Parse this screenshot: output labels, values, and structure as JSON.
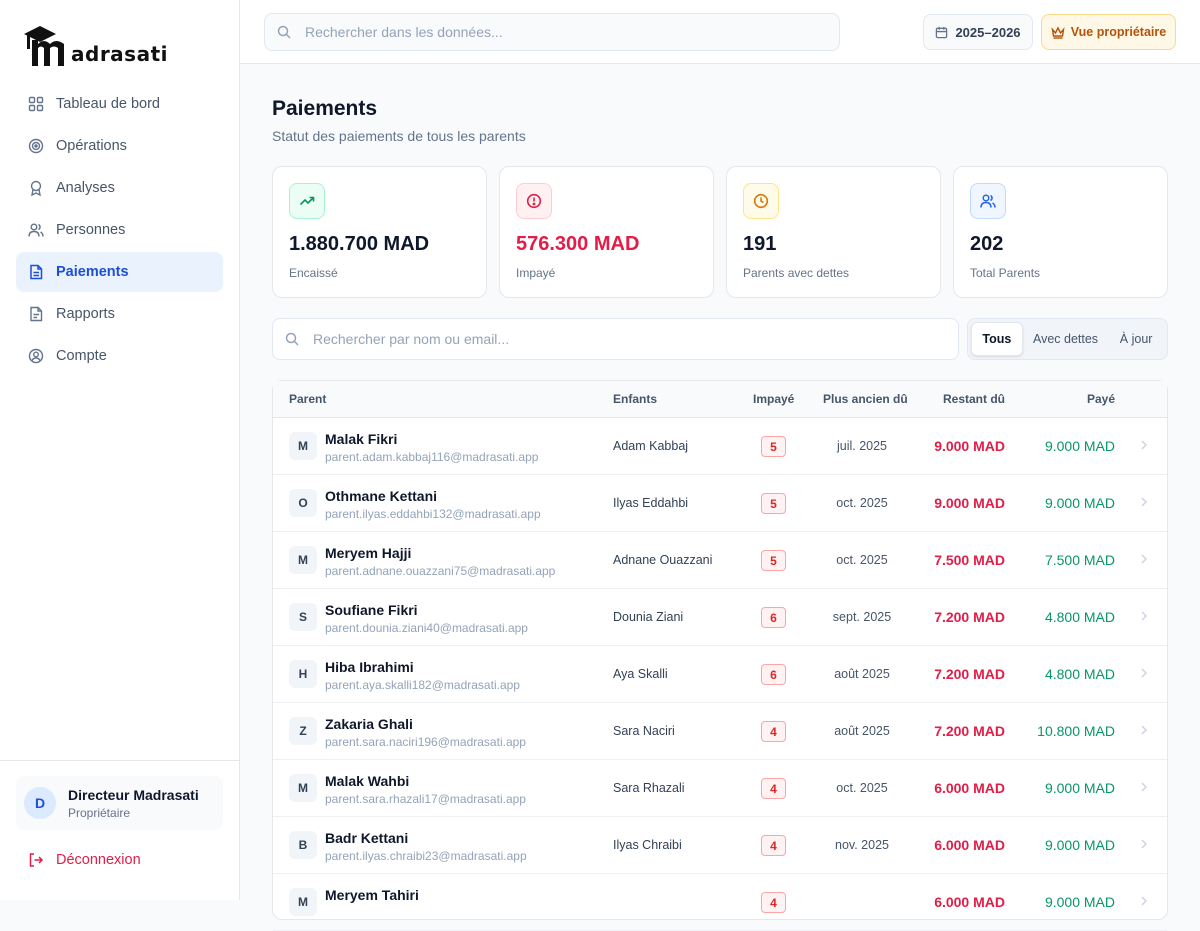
{
  "app": {
    "logo_text": "adrasati"
  },
  "sidebar": {
    "items": [
      {
        "label": "Tableau de bord",
        "icon": "dashboard-icon"
      },
      {
        "label": "Opérations",
        "icon": "target-icon"
      },
      {
        "label": "Analyses",
        "icon": "award-icon"
      },
      {
        "label": "Personnes",
        "icon": "users-icon"
      },
      {
        "label": "Paiements",
        "icon": "document-icon",
        "active": true
      },
      {
        "label": "Rapports",
        "icon": "report-icon"
      },
      {
        "label": "Compte",
        "icon": "user-circle-icon"
      }
    ],
    "user": {
      "initial": "D",
      "name": "Directeur Madrasati",
      "role": "Propriétaire"
    },
    "logout_label": "Déconnexion"
  },
  "topbar": {
    "search_placeholder": "Rechercher dans les données...",
    "year": "2025–2026",
    "owner_view": "Vue propriétaire"
  },
  "page": {
    "title": "Paiements",
    "subtitle": "Statut des paiements de tous les parents"
  },
  "stats": [
    {
      "value": "1.880.700 MAD",
      "label": "Encaissé",
      "icon": "trending-up-icon",
      "accent": "#059669",
      "bg": "#ecfdf5",
      "border": "#a7f3d0",
      "value_color": "#0f172a"
    },
    {
      "value": "576.300 MAD",
      "label": "Impayé",
      "icon": "alert-circle-icon",
      "accent": "#e11d48",
      "bg": "#fff1f2",
      "border": "#fecdd3",
      "value_color": "#e11d48"
    },
    {
      "value": "191",
      "label": "Parents avec dettes",
      "icon": "clock-icon",
      "accent": "#d97706",
      "bg": "#fffbeb",
      "border": "#fde68a",
      "value_color": "#0f172a"
    },
    {
      "value": "202",
      "label": "Total Parents",
      "icon": "users-icon",
      "accent": "#2563eb",
      "bg": "#eff6ff",
      "border": "#bfdbfe",
      "value_color": "#0f172a"
    }
  ],
  "filters": {
    "search_placeholder": "Rechercher par nom ou email...",
    "tabs": [
      {
        "label": "Tous",
        "active": true
      },
      {
        "label": "Avec dettes"
      },
      {
        "label": "À jour"
      }
    ]
  },
  "table": {
    "headers": {
      "parent": "Parent",
      "enfants": "Enfants",
      "impaye": "Impayé",
      "ancien": "Plus ancien dû",
      "restant": "Restant dû",
      "paye": "Payé"
    },
    "rows": [
      {
        "initial": "M",
        "name": "Malak Fikri",
        "email": "parent.adam.kabbaj116@madrasati.app",
        "child": "Adam Kabbaj",
        "unpaid": "5",
        "oldest": "juil. 2025",
        "remaining": "9.000 MAD",
        "paid": "9.000 MAD"
      },
      {
        "initial": "O",
        "name": "Othmane Kettani",
        "email": "parent.ilyas.eddahbi132@madrasati.app",
        "child": "Ilyas Eddahbi",
        "unpaid": "5",
        "oldest": "oct. 2025",
        "remaining": "9.000 MAD",
        "paid": "9.000 MAD"
      },
      {
        "initial": "M",
        "name": "Meryem Hajji",
        "email": "parent.adnane.ouazzani75@madrasati.app",
        "child": "Adnane Ouazzani",
        "unpaid": "5",
        "oldest": "oct. 2025",
        "remaining": "7.500 MAD",
        "paid": "7.500 MAD"
      },
      {
        "initial": "S",
        "name": "Soufiane Fikri",
        "email": "parent.dounia.ziani40@madrasati.app",
        "child": "Dounia Ziani",
        "unpaid": "6",
        "oldest": "sept. 2025",
        "remaining": "7.200 MAD",
        "paid": "4.800 MAD"
      },
      {
        "initial": "H",
        "name": "Hiba Ibrahimi",
        "email": "parent.aya.skalli182@madrasati.app",
        "child": "Aya Skalli",
        "unpaid": "6",
        "oldest": "août 2025",
        "remaining": "7.200 MAD",
        "paid": "4.800 MAD"
      },
      {
        "initial": "Z",
        "name": "Zakaria Ghali",
        "email": "parent.sara.naciri196@madrasati.app",
        "child": "Sara Naciri",
        "unpaid": "4",
        "oldest": "août 2025",
        "remaining": "7.200 MAD",
        "paid": "10.800 MAD"
      },
      {
        "initial": "M",
        "name": "Malak Wahbi",
        "email": "parent.sara.rhazali17@madrasati.app",
        "child": "Sara Rhazali",
        "unpaid": "4",
        "oldest": "oct. 2025",
        "remaining": "6.000 MAD",
        "paid": "9.000 MAD"
      },
      {
        "initial": "B",
        "name": "Badr Kettani",
        "email": "parent.ilyas.chraibi23@madrasati.app",
        "child": "Ilyas Chraibi",
        "unpaid": "4",
        "oldest": "nov. 2025",
        "remaining": "6.000 MAD",
        "paid": "9.000 MAD"
      },
      {
        "initial": "M",
        "name": "Meryem Tahiri",
        "email": "",
        "child": "",
        "unpaid": "4",
        "oldest": "",
        "remaining": "6.000 MAD",
        "paid": "9.000 MAD"
      }
    ]
  }
}
